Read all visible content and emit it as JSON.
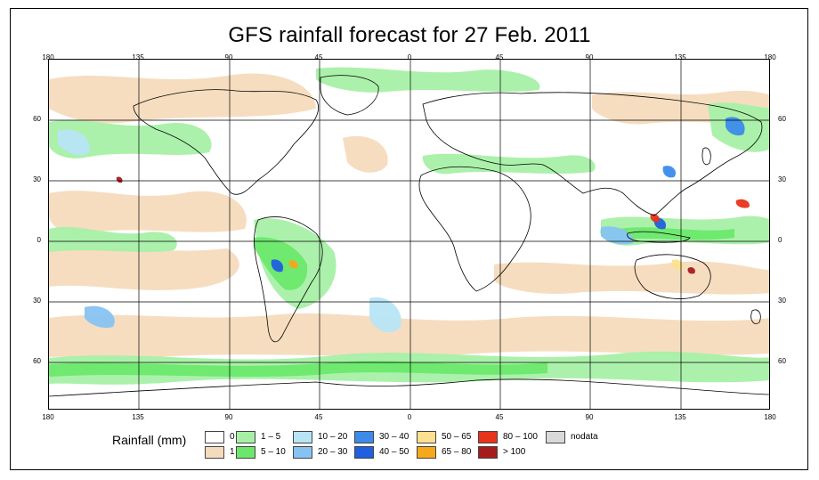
{
  "title": "GFS rainfall forecast for 27 Feb. 2011",
  "axes": {
    "lon_top": [
      "180",
      "135",
      "90",
      "45",
      "0",
      "45",
      "90",
      "135",
      "180"
    ],
    "lon_bottom": [
      "180",
      "135",
      "90",
      "45",
      "0",
      "45",
      "90",
      "135",
      "180"
    ],
    "lat_left": [
      "60",
      "30",
      "0",
      "30",
      "60"
    ],
    "lat_right": [
      "60",
      "30",
      "0",
      "30",
      "60"
    ]
  },
  "legend": {
    "title": "Rainfall (mm)",
    "items": [
      {
        "label": "0",
        "color": "#ffffff"
      },
      {
        "label": "1",
        "color": "#f5dbbd"
      },
      {
        "label": "1 – 5",
        "color": "#a6f0a6"
      },
      {
        "label": "5 – 10",
        "color": "#6be86b"
      },
      {
        "label": "10 – 20",
        "color": "#b7e5f5"
      },
      {
        "label": "20 – 30",
        "color": "#87c3f2"
      },
      {
        "label": "30 – 40",
        "color": "#3c8bea"
      },
      {
        "label": "40 – 50",
        "color": "#1f5fe0"
      },
      {
        "label": "50 – 65",
        "color": "#fbe090"
      },
      {
        "label": "65 – 80",
        "color": "#f5a81a"
      },
      {
        "label": "80 – 100",
        "color": "#e8331a"
      },
      {
        "label": "> 100",
        "color": "#a61c1c"
      },
      {
        "label": "nodata",
        "color": "#d9d9d9"
      }
    ]
  },
  "colors": {
    "coast": "#000000",
    "grid": "#000000",
    "frame": "#000000"
  }
}
